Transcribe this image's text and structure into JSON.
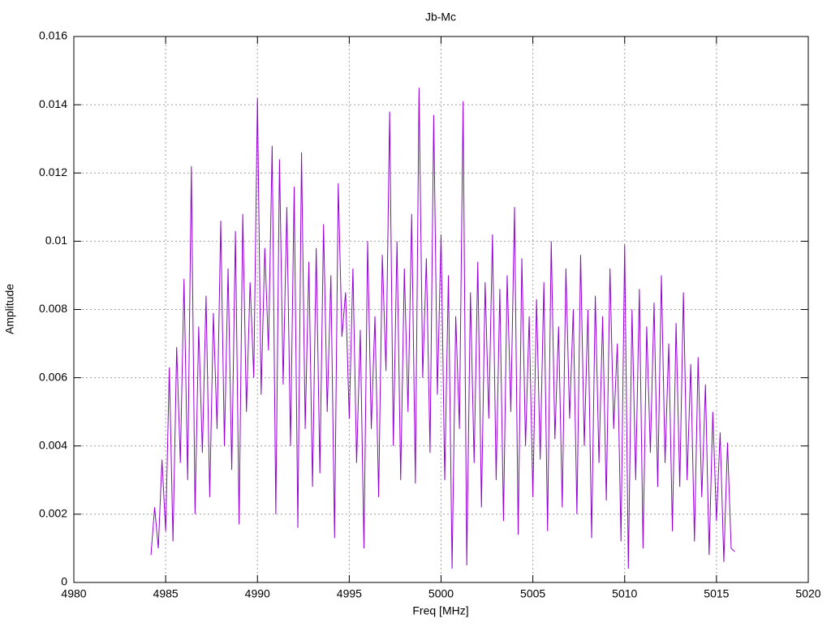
{
  "chart_data": {
    "type": "line",
    "title": "Jb-Mc",
    "xlabel": "Freq [MHz]",
    "ylabel": "Amplitude",
    "xlim": [
      4980,
      5020
    ],
    "xticks": [
      4980,
      4985,
      4990,
      4995,
      5000,
      5005,
      5010,
      5015,
      5020
    ],
    "ylim": [
      0,
      0.016
    ],
    "yticks": [
      0,
      0.002,
      0.004,
      0.006,
      0.008,
      0.01,
      0.012,
      0.014,
      0.016
    ],
    "grid": true,
    "x": [
      4984.2,
      4984.4,
      4984.6,
      4984.8,
      4985.0,
      4985.2,
      4985.4,
      4985.6,
      4985.8,
      4986.0,
      4986.2,
      4986.4,
      4986.6,
      4986.8,
      4987.0,
      4987.2,
      4987.4,
      4987.6,
      4987.8,
      4988.0,
      4988.2,
      4988.4,
      4988.6,
      4988.8,
      4989.0,
      4989.2,
      4989.4,
      4989.6,
      4989.8,
      4990.0,
      4990.2,
      4990.4,
      4990.6,
      4990.8,
      4991.0,
      4991.2,
      4991.4,
      4991.6,
      4991.8,
      4992.0,
      4992.2,
      4992.4,
      4992.6,
      4992.8,
      4993.0,
      4993.2,
      4993.4,
      4993.6,
      4993.8,
      4994.0,
      4994.2,
      4994.4,
      4994.6,
      4994.8,
      4995.0,
      4995.2,
      4995.4,
      4995.6,
      4995.8,
      4996.0,
      4996.2,
      4996.4,
      4996.6,
      4996.8,
      4997.0,
      4997.2,
      4997.4,
      4997.6,
      4997.8,
      4998.0,
      4998.2,
      4998.4,
      4998.6,
      4998.8,
      4999.0,
      4999.2,
      4999.4,
      4999.6,
      4999.8,
      5000.0,
      5000.2,
      5000.4,
      5000.6,
      5000.8,
      5001.0,
      5001.2,
      5001.4,
      5001.6,
      5001.8,
      5002.0,
      5002.2,
      5002.4,
      5002.6,
      5002.8,
      5003.0,
      5003.2,
      5003.4,
      5003.6,
      5003.8,
      5004.0,
      5004.2,
      5004.4,
      5004.6,
      5004.8,
      5005.0,
      5005.2,
      5005.4,
      5005.6,
      5005.8,
      5006.0,
      5006.2,
      5006.4,
      5006.6,
      5006.8,
      5007.0,
      5007.2,
      5007.4,
      5007.6,
      5007.8,
      5008.0,
      5008.2,
      5008.4,
      5008.6,
      5008.8,
      5009.0,
      5009.2,
      5009.4,
      5009.6,
      5009.8,
      5010.0,
      5010.2,
      5010.4,
      5010.6,
      5010.8,
      5011.0,
      5011.2,
      5011.4,
      5011.6,
      5011.8,
      5012.0,
      5012.2,
      5012.4,
      5012.6,
      5012.8,
      5013.0,
      5013.2,
      5013.4,
      5013.6,
      5013.8,
      5014.0,
      5014.2,
      5014.4,
      5014.6,
      5014.8,
      5015.0,
      5015.2,
      5015.4,
      5015.6,
      5015.8,
      5016.0
    ],
    "series": [
      {
        "name": "Jb-Mc",
        "color": "#9400d3",
        "values": [
          0.0008,
          0.0022,
          0.001,
          0.0036,
          0.0015,
          0.0063,
          0.0012,
          0.0069,
          0.0035,
          0.0089,
          0.003,
          0.0122,
          0.002,
          0.0075,
          0.0038,
          0.0084,
          0.0025,
          0.0079,
          0.0045,
          0.0106,
          0.004,
          0.0092,
          0.0033,
          0.0103,
          0.0017,
          0.0108,
          0.005,
          0.0088,
          0.006,
          0.0142,
          0.0055,
          0.0098,
          0.0068,
          0.0128,
          0.002,
          0.0124,
          0.0058,
          0.011,
          0.004,
          0.0116,
          0.0016,
          0.0126,
          0.0045,
          0.0094,
          0.0028,
          0.0098,
          0.0032,
          0.0105,
          0.005,
          0.009,
          0.0013,
          0.0117,
          0.0072,
          0.0085,
          0.0048,
          0.0092,
          0.0035,
          0.0074,
          0.001,
          0.01,
          0.0045,
          0.0078,
          0.0025,
          0.0096,
          0.0062,
          0.0138,
          0.004,
          0.01,
          0.003,
          0.0092,
          0.005,
          0.0108,
          0.0029,
          0.0145,
          0.006,
          0.0095,
          0.0038,
          0.0137,
          0.0055,
          0.0102,
          0.003,
          0.009,
          0.0004,
          0.0078,
          0.0045,
          0.0141,
          0.0005,
          0.0085,
          0.0035,
          0.0094,
          0.0022,
          0.0088,
          0.0048,
          0.0102,
          0.003,
          0.0086,
          0.0018,
          0.009,
          0.005,
          0.011,
          0.0014,
          0.0095,
          0.004,
          0.0078,
          0.0025,
          0.0083,
          0.0036,
          0.0088,
          0.0015,
          0.01,
          0.0042,
          0.0075,
          0.0022,
          0.0092,
          0.0048,
          0.008,
          0.002,
          0.0096,
          0.004,
          0.008,
          0.0013,
          0.0084,
          0.0035,
          0.0078,
          0.0024,
          0.0092,
          0.0045,
          0.007,
          0.0012,
          0.0099,
          0.0004,
          0.008,
          0.003,
          0.0086,
          0.001,
          0.0075,
          0.0038,
          0.0082,
          0.0028,
          0.009,
          0.0035,
          0.007,
          0.0015,
          0.0076,
          0.0028,
          0.0085,
          0.003,
          0.0064,
          0.0012,
          0.0066,
          0.0025,
          0.0058,
          0.0008,
          0.005,
          0.0018,
          0.0044,
          0.0006,
          0.0041,
          0.001,
          0.0009
        ]
      }
    ]
  }
}
